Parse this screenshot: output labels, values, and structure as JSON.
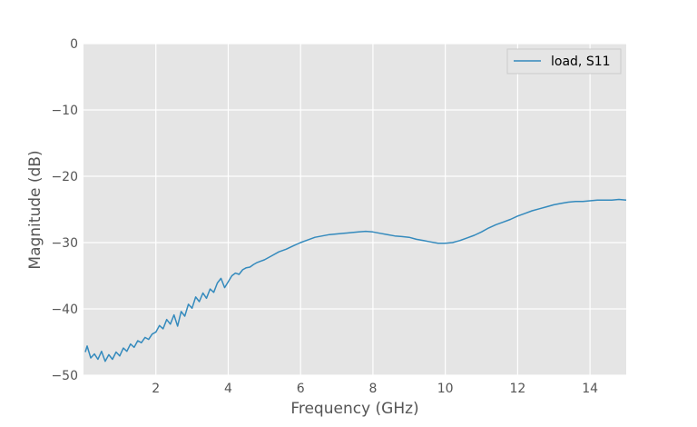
{
  "chart_data": {
    "type": "line",
    "title": "",
    "xlabel": "Frequency (GHz)",
    "ylabel": "Magnitude (dB)",
    "xlim": [
      0,
      15
    ],
    "ylim": [
      -50,
      0
    ],
    "xticks": [
      2,
      4,
      6,
      8,
      10,
      12,
      14
    ],
    "yticks": [
      0,
      -10,
      -20,
      -30,
      -40,
      -50
    ],
    "xtick_labels": [
      "2",
      "4",
      "6",
      "8",
      "10",
      "12",
      "14"
    ],
    "ytick_labels": [
      "0",
      "−10",
      "−20",
      "−30",
      "−40",
      "−50"
    ],
    "grid": true,
    "legend_position": "top-right",
    "series": [
      {
        "name": "load, S11",
        "color": "#348abd",
        "x": [
          0.05,
          0.1,
          0.2,
          0.3,
          0.4,
          0.5,
          0.6,
          0.7,
          0.8,
          0.9,
          1.0,
          1.1,
          1.2,
          1.3,
          1.4,
          1.5,
          1.6,
          1.7,
          1.8,
          1.9,
          2.0,
          2.1,
          2.2,
          2.3,
          2.4,
          2.5,
          2.6,
          2.7,
          2.8,
          2.9,
          3.0,
          3.1,
          3.2,
          3.3,
          3.4,
          3.5,
          3.6,
          3.7,
          3.8,
          3.9,
          4.0,
          4.1,
          4.2,
          4.3,
          4.4,
          4.5,
          4.6,
          4.7,
          4.8,
          4.9,
          5.0,
          5.2,
          5.4,
          5.6,
          5.8,
          6.0,
          6.2,
          6.4,
          6.6,
          6.8,
          7.0,
          7.2,
          7.4,
          7.6,
          7.8,
          8.0,
          8.2,
          8.4,
          8.6,
          8.8,
          9.0,
          9.2,
          9.4,
          9.6,
          9.8,
          10.0,
          10.2,
          10.4,
          10.6,
          10.8,
          11.0,
          11.2,
          11.4,
          11.6,
          11.8,
          12.0,
          12.2,
          12.4,
          12.6,
          12.8,
          13.0,
          13.2,
          13.4,
          13.6,
          13.8,
          14.0,
          14.2,
          14.4,
          14.6,
          14.8,
          15.0
        ],
        "values": [
          -46.5,
          -45.6,
          -47.4,
          -46.8,
          -47.6,
          -46.4,
          -47.9,
          -46.9,
          -47.6,
          -46.5,
          -47.1,
          -45.9,
          -46.4,
          -45.3,
          -45.8,
          -44.8,
          -45.1,
          -44.3,
          -44.6,
          -43.8,
          -43.5,
          -42.5,
          -43.0,
          -41.6,
          -42.3,
          -40.9,
          -42.6,
          -40.4,
          -41.1,
          -39.3,
          -39.9,
          -38.2,
          -38.9,
          -37.6,
          -38.4,
          -37.0,
          -37.5,
          -36.1,
          -35.4,
          -36.8,
          -35.9,
          -35.0,
          -34.6,
          -34.8,
          -34.1,
          -33.8,
          -33.7,
          -33.3,
          -33.0,
          -32.8,
          -32.6,
          -32.0,
          -31.4,
          -31.0,
          -30.5,
          -30.0,
          -29.6,
          -29.2,
          -29.0,
          -28.8,
          -28.7,
          -28.6,
          -28.5,
          -28.4,
          -28.3,
          -28.4,
          -28.6,
          -28.8,
          -29.0,
          -29.1,
          -29.2,
          -29.5,
          -29.7,
          -29.9,
          -30.1,
          -30.1,
          -30.0,
          -29.7,
          -29.3,
          -28.9,
          -28.4,
          -27.8,
          -27.3,
          -26.9,
          -26.5,
          -26.0,
          -25.6,
          -25.2,
          -24.9,
          -24.6,
          -24.3,
          -24.1,
          -23.9,
          -23.8,
          -23.8,
          -23.7,
          -23.6,
          -23.6,
          -23.6,
          -23.5,
          -23.6
        ]
      }
    ]
  }
}
